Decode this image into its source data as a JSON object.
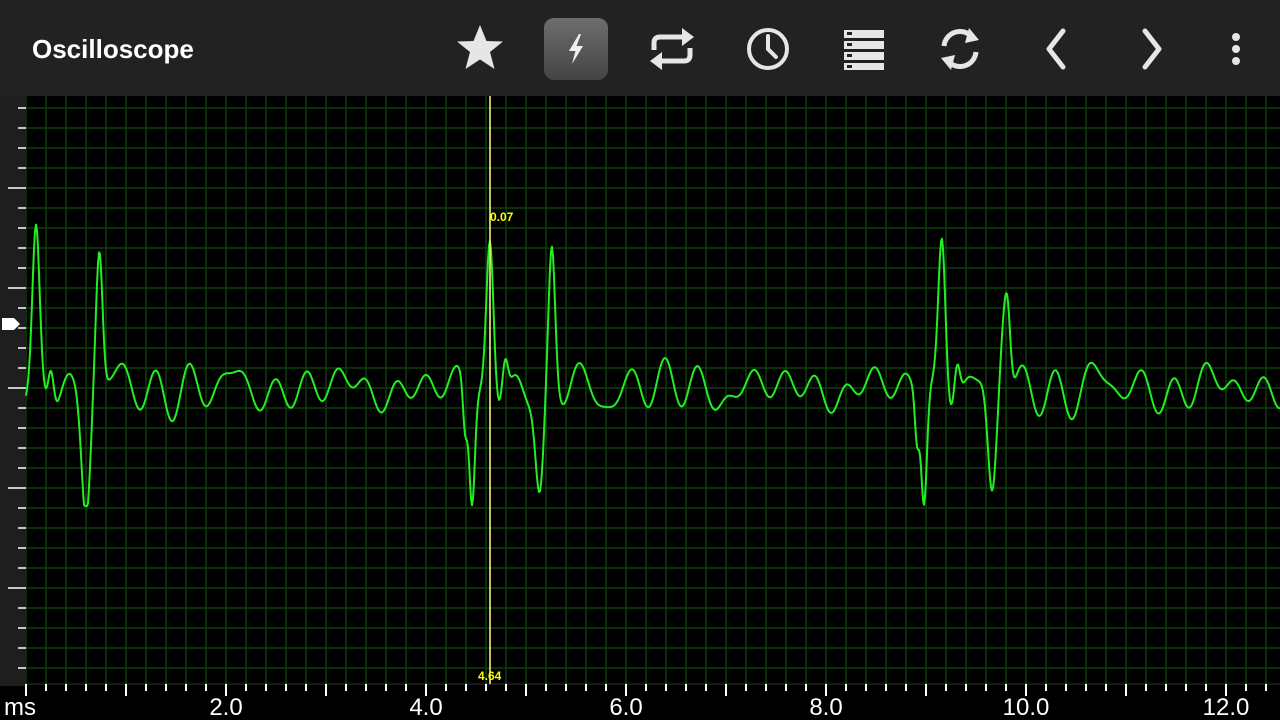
{
  "app": {
    "title": "Oscilloscope"
  },
  "toolbar": {
    "buttons": [
      {
        "name": "favorite",
        "icon": "star-icon",
        "active": false
      },
      {
        "name": "trigger",
        "icon": "lightning-bolt-icon",
        "active": true
      },
      {
        "name": "repeat",
        "icon": "repeat-icon",
        "active": false
      },
      {
        "name": "history",
        "icon": "clock-icon",
        "active": false
      },
      {
        "name": "buffer",
        "icon": "stacked-list-icon",
        "active": false
      },
      {
        "name": "refresh",
        "icon": "refresh-icon",
        "active": false
      },
      {
        "name": "previous",
        "icon": "chevron-left-icon",
        "active": false
      },
      {
        "name": "next",
        "icon": "chevron-right-icon",
        "active": false
      },
      {
        "name": "more",
        "icon": "more-vert-icon",
        "active": false
      }
    ]
  },
  "scope": {
    "time_unit": "ms",
    "time_ticks": [
      "2.0",
      "4.0",
      "6.0",
      "8.0",
      "10.0",
      "12.0"
    ],
    "cursor": {
      "time": "4.64",
      "value": "0.07"
    },
    "colors": {
      "background": "#000000",
      "grid": "#0d3d0d",
      "trace": "#22ee22",
      "cursor": "#ffff88",
      "cursor_text": "#ffff00",
      "appbar": "#222222"
    }
  }
}
